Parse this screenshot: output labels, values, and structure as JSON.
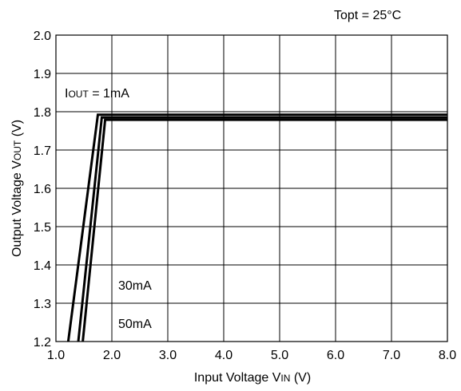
{
  "chart_data": {
    "type": "line",
    "condition": "Topt = 25°C",
    "xlabel": "Input Voltage V",
    "xlabel_sub": "IN",
    "xlabel_unit": " (V)",
    "ylabel": "Output Voltage V",
    "ylabel_sub": "OUT",
    "ylabel_unit": " (V)",
    "xlim": [
      1.0,
      8.0
    ],
    "ylim": [
      1.2,
      2.0
    ],
    "x_ticks": [
      "1.0",
      "2.0",
      "3.0",
      "4.0",
      "5.0",
      "6.0",
      "7.0",
      "8.0"
    ],
    "y_ticks": [
      "1.2",
      "1.3",
      "1.4",
      "1.5",
      "1.6",
      "1.7",
      "1.8",
      "1.9",
      "2.0"
    ],
    "grid": true,
    "series_label_prefix": "I",
    "series_label_sub": "OUT",
    "series_label_suffix": " = ",
    "series": [
      {
        "name": "1mA",
        "x": [
          1.22,
          1.75,
          8.0
        ],
        "y": [
          1.2,
          1.792,
          1.792
        ]
      },
      {
        "name": "30mA",
        "x": [
          1.4,
          1.82,
          8.0
        ],
        "y": [
          1.2,
          1.785,
          1.785
        ]
      },
      {
        "name": "50mA",
        "x": [
          1.48,
          1.88,
          8.0
        ],
        "y": [
          1.2,
          1.779,
          1.779
        ]
      }
    ]
  }
}
